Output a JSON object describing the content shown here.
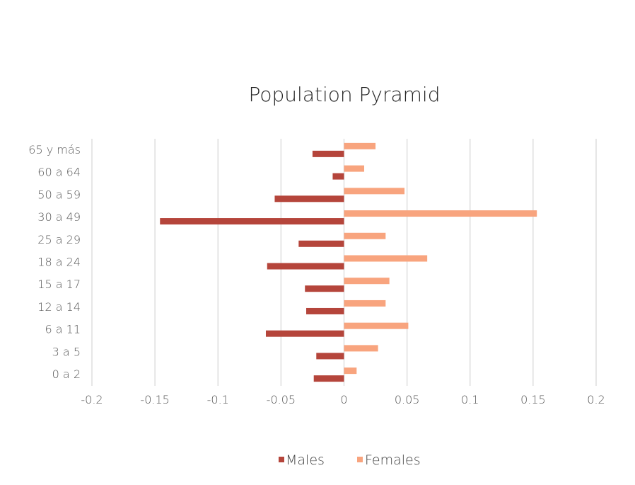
{
  "chart_data": {
    "type": "bar",
    "orientation": "horizontal",
    "title": "Population Pyramid",
    "xlabel": "",
    "ylabel": "",
    "xlim": [
      -0.2,
      0.2
    ],
    "x_ticks": [
      -0.2,
      -0.15,
      -0.1,
      -0.05,
      0,
      0.05,
      0.1,
      0.15,
      0.2
    ],
    "x_tick_labels": [
      "-0.2",
      "-0.15",
      "-0.1",
      "-0.05",
      "0",
      "0.05",
      "0.1",
      "0.15",
      "0.2"
    ],
    "grid": true,
    "legend_position": "bottom",
    "categories": [
      "0 a 2",
      "3 a 5",
      "6 a 11",
      "12 a 14",
      "15 a 17",
      "18 a 24",
      "25 a 29",
      "30 a 49",
      "50 a 59",
      "60 a 64",
      "65 y más"
    ],
    "series": [
      {
        "name": "Males",
        "color": "#b5453b",
        "values": [
          -0.024,
          -0.022,
          -0.062,
          -0.03,
          -0.031,
          -0.061,
          -0.036,
          -0.146,
          -0.055,
          -0.009,
          -0.025
        ]
      },
      {
        "name": "Females",
        "color": "#f8a47e",
        "values": [
          0.01,
          0.027,
          0.051,
          0.033,
          0.036,
          0.066,
          0.033,
          0.153,
          0.048,
          0.016,
          0.025
        ]
      }
    ]
  }
}
